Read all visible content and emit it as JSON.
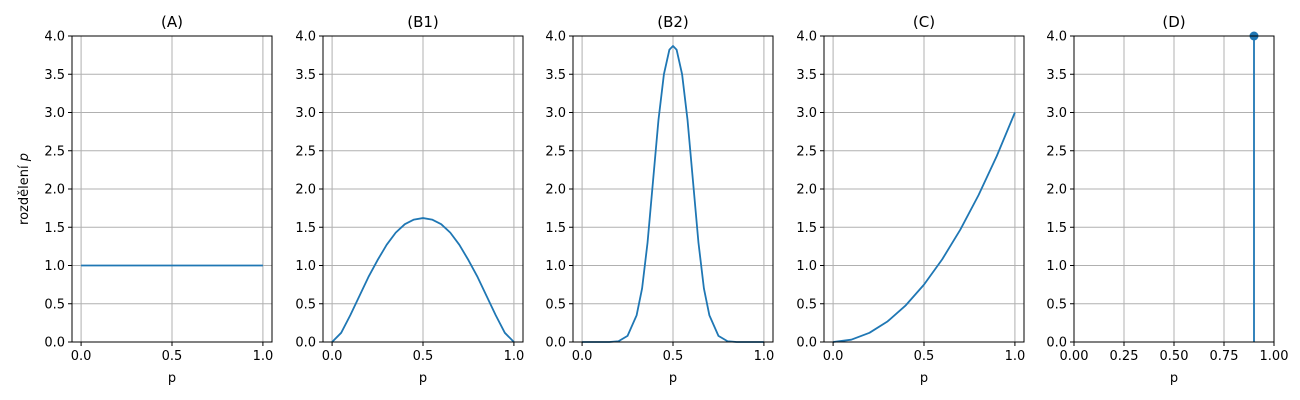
{
  "chart_data": [
    {
      "type": "line",
      "title": "(A)",
      "xlabel": "p",
      "ylabel": "rozdělení p",
      "xlim": [
        -0.05,
        1.05
      ],
      "ylim": [
        0,
        4
      ],
      "xticks": [
        0.0,
        0.5,
        1.0
      ],
      "xtick_labels": [
        "0.0",
        "0.5",
        "1.0"
      ],
      "yticks": [
        0.0,
        0.5,
        1.0,
        1.5,
        2.0,
        2.5,
        3.0,
        3.5,
        4.0
      ],
      "ytick_labels": [
        "0.0",
        "0.5",
        "1.0",
        "1.5",
        "2.0",
        "2.5",
        "3.0",
        "3.5",
        "4.0"
      ],
      "grid": true,
      "color": "#1f77b4",
      "series": [
        {
          "x": [
            0.0,
            0.25,
            0.5,
            0.75,
            1.0
          ],
          "y": [
            1.0,
            1.0,
            1.0,
            1.0,
            1.0
          ]
        }
      ]
    },
    {
      "type": "line",
      "title": "(B1)",
      "xlabel": "p",
      "ylabel": "",
      "xlim": [
        -0.05,
        1.05
      ],
      "ylim": [
        0,
        4
      ],
      "xticks": [
        0.0,
        0.5,
        1.0
      ],
      "xtick_labels": [
        "0.0",
        "0.5",
        "1.0"
      ],
      "yticks": [
        0.0,
        0.5,
        1.0,
        1.5,
        2.0,
        2.5,
        3.0,
        3.5,
        4.0
      ],
      "ytick_labels": [
        "0.0",
        "0.5",
        "1.0",
        "1.5",
        "2.0",
        "2.5",
        "3.0",
        "3.5",
        "4.0"
      ],
      "grid": true,
      "color": "#1f77b4",
      "series": [
        {
          "x": [
            0.0,
            0.05,
            0.1,
            0.15,
            0.2,
            0.25,
            0.3,
            0.35,
            0.4,
            0.45,
            0.5,
            0.55,
            0.6,
            0.65,
            0.7,
            0.75,
            0.8,
            0.85,
            0.9,
            0.95,
            1.0
          ],
          "y": [
            0.0,
            0.12,
            0.35,
            0.6,
            0.85,
            1.07,
            1.27,
            1.43,
            1.54,
            1.6,
            1.62,
            1.6,
            1.54,
            1.43,
            1.27,
            1.07,
            0.85,
            0.6,
            0.35,
            0.12,
            0.0
          ]
        }
      ]
    },
    {
      "type": "line",
      "title": "(B2)",
      "xlabel": "p",
      "ylabel": "",
      "xlim": [
        -0.05,
        1.05
      ],
      "ylim": [
        0,
        4
      ],
      "xticks": [
        0.0,
        0.5,
        1.0
      ],
      "xtick_labels": [
        "0.0",
        "0.5",
        "1.0"
      ],
      "yticks": [
        0.0,
        0.5,
        1.0,
        1.5,
        2.0,
        2.5,
        3.0,
        3.5,
        4.0
      ],
      "ytick_labels": [
        "0.0",
        "0.5",
        "1.0",
        "1.5",
        "2.0",
        "2.5",
        "3.0",
        "3.5",
        "4.0"
      ],
      "grid": true,
      "color": "#1f77b4",
      "series": [
        {
          "x": [
            0.0,
            0.05,
            0.1,
            0.15,
            0.2,
            0.25,
            0.3,
            0.33,
            0.36,
            0.39,
            0.42,
            0.45,
            0.48,
            0.5,
            0.52,
            0.55,
            0.58,
            0.61,
            0.64,
            0.67,
            0.7,
            0.75,
            0.8,
            0.85,
            0.9,
            0.95,
            1.0
          ],
          "y": [
            0.0,
            0.0,
            0.0,
            0.0,
            0.01,
            0.08,
            0.35,
            0.7,
            1.3,
            2.1,
            2.9,
            3.5,
            3.82,
            3.87,
            3.82,
            3.5,
            2.9,
            2.1,
            1.3,
            0.7,
            0.35,
            0.08,
            0.01,
            0.0,
            0.0,
            0.0,
            0.0
          ]
        }
      ]
    },
    {
      "type": "line",
      "title": "(C)",
      "xlabel": "p",
      "ylabel": "",
      "xlim": [
        -0.05,
        1.05
      ],
      "ylim": [
        0,
        4
      ],
      "xticks": [
        0.0,
        0.5,
        1.0
      ],
      "xtick_labels": [
        "0.0",
        "0.5",
        "1.0"
      ],
      "yticks": [
        0.0,
        0.5,
        1.0,
        1.5,
        2.0,
        2.5,
        3.0,
        3.5,
        4.0
      ],
      "ytick_labels": [
        "0.0",
        "0.5",
        "1.0",
        "1.5",
        "2.0",
        "2.5",
        "3.0",
        "3.5",
        "4.0"
      ],
      "grid": true,
      "color": "#1f77b4",
      "series": [
        {
          "x": [
            0.0,
            0.1,
            0.2,
            0.3,
            0.4,
            0.5,
            0.6,
            0.7,
            0.8,
            0.9,
            1.0
          ],
          "y": [
            0.0,
            0.03,
            0.12,
            0.27,
            0.48,
            0.75,
            1.08,
            1.47,
            1.92,
            2.43,
            3.0
          ]
        }
      ]
    },
    {
      "type": "line",
      "title": "(D)",
      "xlabel": "p",
      "ylabel": "",
      "xlim": [
        0,
        1
      ],
      "ylim": [
        0,
        4
      ],
      "xticks": [
        0.0,
        0.25,
        0.5,
        0.75,
        1.0
      ],
      "xtick_labels": [
        "0.00",
        "0.25",
        "0.50",
        "0.75",
        "1.00"
      ],
      "yticks": [
        0.0,
        0.5,
        1.0,
        1.5,
        2.0,
        2.5,
        3.0,
        3.5,
        4.0
      ],
      "ytick_labels": [
        "0.0",
        "0.5",
        "1.0",
        "1.5",
        "2.0",
        "2.5",
        "3.0",
        "3.5",
        "4.0"
      ],
      "grid": true,
      "color": "#1f77b4",
      "stem": {
        "x": 0.9,
        "y": 4.0,
        "marker": "circle"
      }
    }
  ]
}
